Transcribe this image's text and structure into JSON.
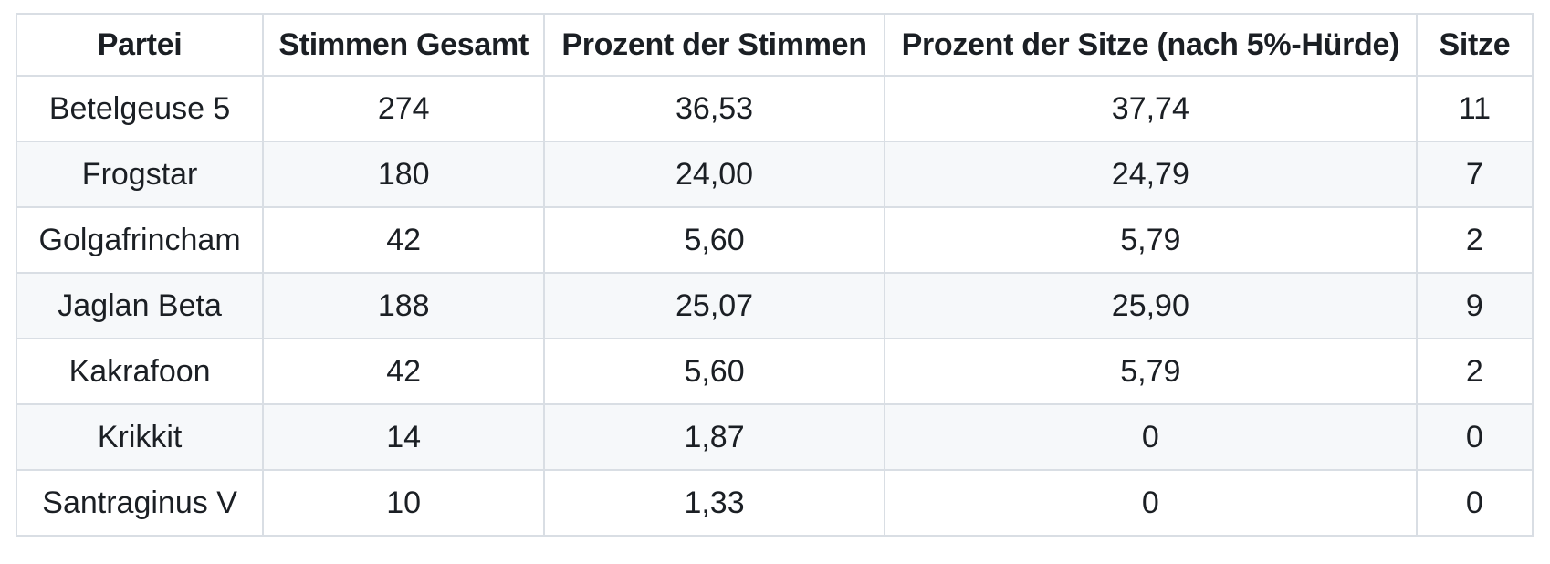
{
  "chart_data": {
    "type": "table",
    "title": "",
    "columns": [
      "Partei",
      "Stimmen Gesamt",
      "Prozent der Stimmen",
      "Prozent der Sitze (nach 5%-Hürde)",
      "Sitze"
    ],
    "rows": [
      [
        "Betelgeuse 5",
        "274",
        "36,53",
        "37,74",
        "11"
      ],
      [
        "Frogstar",
        "180",
        "24,00",
        "24,79",
        "7"
      ],
      [
        "Golgafrincham",
        "42",
        "5,60",
        "5,79",
        "2"
      ],
      [
        "Jaglan Beta",
        "188",
        "25,07",
        "25,90",
        "9"
      ],
      [
        "Kakrafoon",
        "42",
        "5,60",
        "5,79",
        "2"
      ],
      [
        "Krikkit",
        "14",
        "1,87",
        "0",
        "0"
      ],
      [
        "Santraginus V",
        "10",
        "1,33",
        "0",
        "0"
      ]
    ],
    "layout": {
      "zebra_striping": true,
      "grid": true,
      "text_align": "center"
    }
  },
  "colors": {
    "border": "#d9dee4",
    "stripe_row_background": "#f6f8fa",
    "row_background": "#ffffff",
    "text": "#1b1f24"
  }
}
